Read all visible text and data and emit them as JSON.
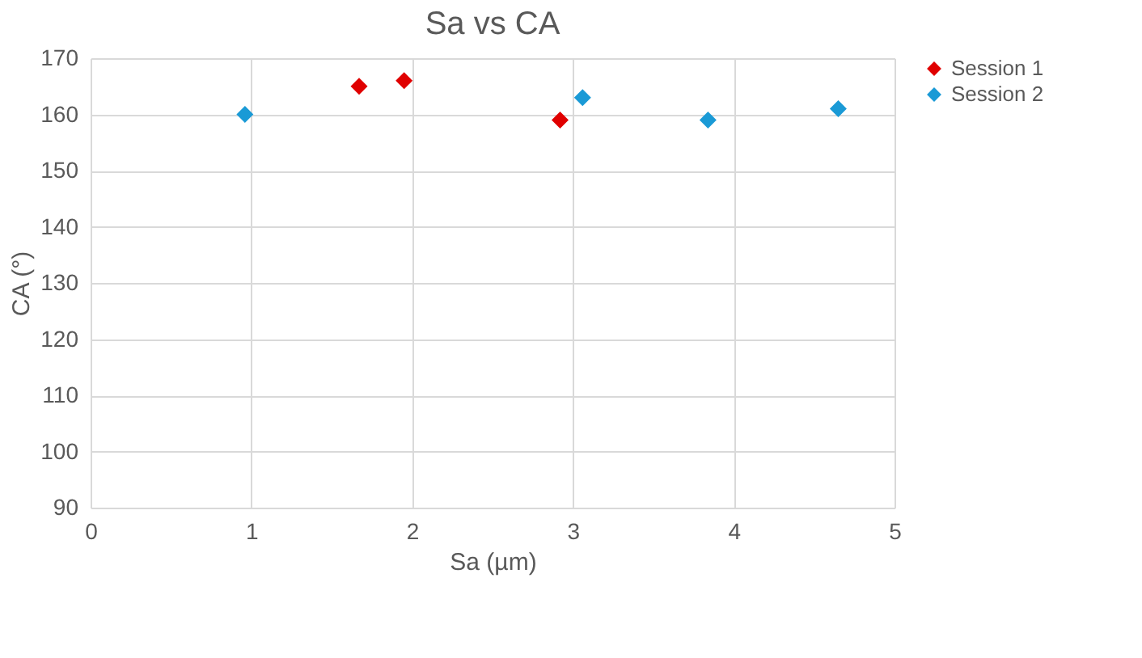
{
  "chart_data": {
    "type": "scatter",
    "title": "Sa vs CA",
    "xlabel": "Sa (µm)",
    "ylabel": "CA (°)",
    "xlim": [
      0,
      5
    ],
    "xticks": [
      0,
      1,
      2,
      3,
      4,
      5
    ],
    "ylim": [
      90,
      170
    ],
    "yticks": [
      90,
      100,
      110,
      120,
      130,
      140,
      150,
      160,
      170
    ],
    "grid": true,
    "legend": "right",
    "marker": "diamond",
    "series": [
      {
        "name": "Session 1",
        "color": "#e00000",
        "x": [
          1.67,
          1.95,
          2.92
        ],
        "values": [
          165,
          166,
          159
        ]
      },
      {
        "name": "Session 2",
        "color": "#1a9ad6",
        "x": [
          0.96,
          3.06,
          3.84,
          4.65
        ],
        "values": [
          160,
          163,
          159,
          161
        ]
      }
    ]
  }
}
